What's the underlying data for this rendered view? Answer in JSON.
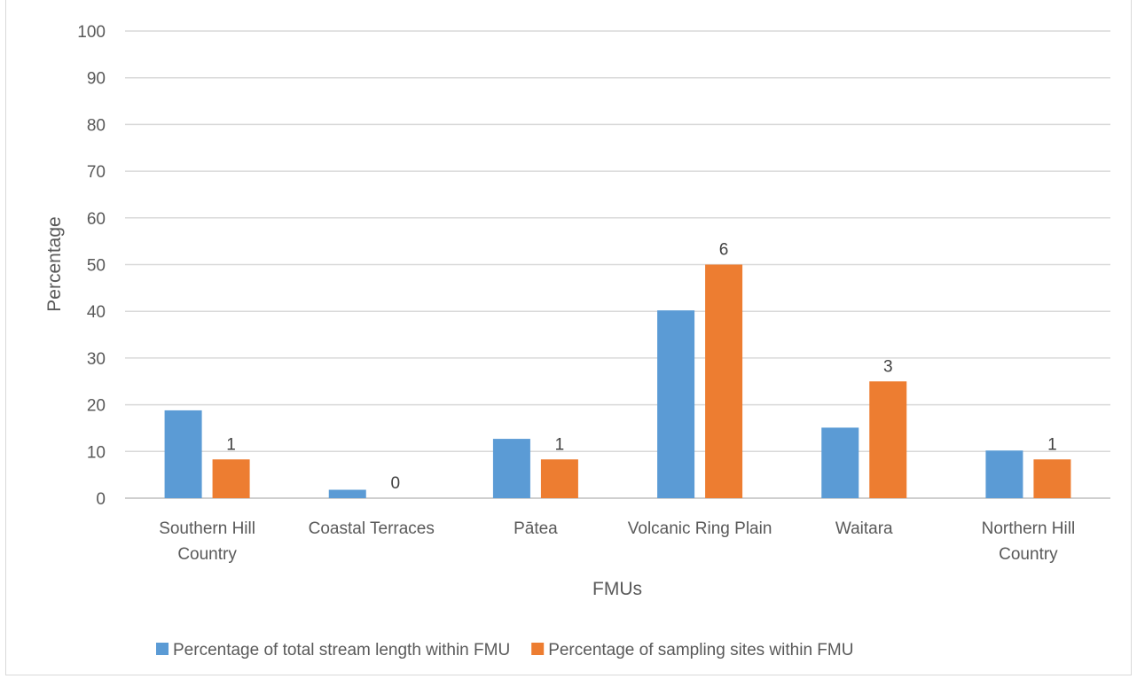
{
  "chart_data": {
    "type": "bar",
    "categories": [
      [
        "Southern Hill",
        "Country"
      ],
      [
        "Coastal Terraces"
      ],
      [
        "Pātea"
      ],
      [
        "Volcanic Ring Plain"
      ],
      [
        "Waitara"
      ],
      [
        "Northern Hill",
        "Country"
      ]
    ],
    "series": [
      {
        "name": "Percentage of total stream length within FMU",
        "color": "#5b9bd5",
        "values": [
          18.8,
          1.8,
          12.7,
          40.2,
          15.1,
          10.2
        ]
      },
      {
        "name": "Percentage of sampling sites within FMU",
        "color": "#ed7d31",
        "values": [
          8.3,
          0,
          8.3,
          50,
          25,
          8.3
        ],
        "data_labels": [
          "1",
          "0",
          "1",
          "6",
          "3",
          "1"
        ]
      }
    ],
    "xlabel": "FMUs",
    "ylabel": "Percentage",
    "ylim": [
      0,
      100
    ],
    "yticks": [
      "0",
      "10",
      "20",
      "30",
      "40",
      "50",
      "60",
      "70",
      "80",
      "90",
      "100"
    ],
    "grid": true,
    "legend": "bottom",
    "grid_color": "#d9d9d9",
    "axis_color": "#bfbfbf"
  }
}
